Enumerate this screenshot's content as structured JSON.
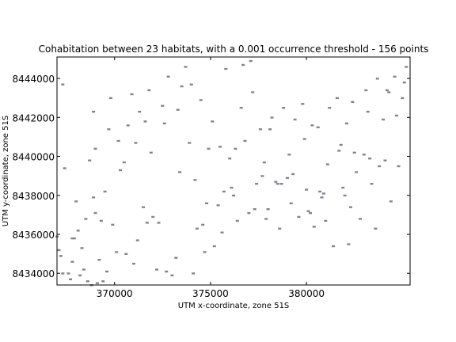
{
  "chart_data": {
    "type": "scatter",
    "title": "Cohabitation between 23 habitats, with a 0.001 occurrence threshold - 156 points",
    "xlabel": "UTM x-coordinate, zone 51S",
    "ylabel": "UTM y-coordinate, zone 51S",
    "xlim": [
      367000,
      385400
    ],
    "ylim": [
      8433400,
      8445100
    ],
    "xticks": [
      370000,
      375000,
      380000
    ],
    "yticks": [
      8434000,
      8436000,
      8438000,
      8440000,
      8442000,
      8444000
    ],
    "grid": false,
    "marker_color": "#8a7f93",
    "x": [
      367000,
      367100,
      367200,
      367300,
      367400,
      367600,
      367700,
      367800,
      367900,
      368000,
      368200,
      368300,
      368400,
      368500,
      368700,
      368800,
      368900,
      369000,
      369100,
      369200,
      369300,
      369500,
      369700,
      369800,
      369900,
      370200,
      370500,
      370700,
      370900,
      371100,
      371300,
      371500,
      371700,
      371800,
      371900,
      372200,
      372500,
      372600,
      372800,
      373200,
      373500,
      373700,
      373900,
      374200,
      374300,
      374500,
      374700,
      374900,
      375100,
      375400,
      375600,
      375800,
      376000,
      376200,
      376400,
      376600,
      376800,
      377000,
      377200,
      377400,
      377600,
      377800,
      378000,
      378200,
      378400,
      378600,
      378800,
      379000,
      379200,
      379400,
      379600,
      379800,
      380000,
      380200,
      380400,
      380600,
      380800,
      381000,
      381200,
      381400,
      381600,
      381800,
      382000,
      382200,
      382400,
      382600,
      382800,
      383000,
      383200,
      383400,
      383600,
      383800,
      384000,
      384200,
      384400,
      384600,
      384800,
      385000,
      385200,
      367300,
      368100,
      369400,
      370100,
      371000,
      372000,
      373000,
      374000,
      375200,
      376100,
      377100,
      378100,
      379100,
      380100,
      381100,
      382100,
      383100,
      384100,
      367800,
      369600,
      371600,
      373300,
      374800,
      376300,
      377900,
      379300,
      380900,
      382300,
      383700,
      385100,
      368600,
      370300,
      372300,
      374100,
      375700,
      377300,
      378700,
      380300,
      381700,
      383300,
      384700,
      369000,
      371200,
      373400,
      375500,
      377700,
      379900,
      381900,
      384300,
      368900,
      372700,
      376700,
      380700,
      370600,
      374600,
      378500,
      382500
    ],
    "y": [
      8435900,
      8435200,
      8434900,
      8443700,
      8439400,
      8434000,
      8433700,
      8434600,
      8435800,
      8437700,
      8433900,
      8435300,
      8434200,
      8436800,
      8439800,
      8433400,
      8437900,
      8440400,
      8433500,
      8434700,
      8436700,
      8438200,
      8441400,
      8443000,
      8436500,
      8440800,
      8439700,
      8441600,
      8443200,
      8440700,
      8442300,
      8437400,
      8436600,
      8443400,
      8440200,
      8434200,
      8442600,
      8441700,
      8444100,
      8434800,
      8443600,
      8444600,
      8440700,
      8438800,
      8436300,
      8442900,
      8435100,
      8440400,
      8441800,
      8437500,
      8436100,
      8444500,
      8439900,
      8438000,
      8436700,
      8442500,
      8440800,
      8437100,
      8443300,
      8438600,
      8441400,
      8439700,
      8437300,
      8442000,
      8438700,
      8436300,
      8442500,
      8438900,
      8437600,
      8441900,
      8436900,
      8442700,
      8438300,
      8437100,
      8436400,
      8441500,
      8437900,
      8436700,
      8442500,
      8435400,
      8443000,
      8440600,
      8438000,
      8435500,
      8442800,
      8439200,
      8436800,
      8440100,
      8442300,
      8438600,
      8436300,
      8439500,
      8441900,
      8443400,
      8437700,
      8444100,
      8439500,
      8443000,
      8444600,
      8434000,
      8436200,
      8433600,
      8435100,
      8434500,
      8436900,
      8433900,
      8443700,
      8435400,
      8438400,
      8444900,
      8441400,
      8440100,
      8437200,
      8439600,
      8441700,
      8443400,
      8439800,
      8435800,
      8434100,
      8441800,
      8442400,
      8437600,
      8440400,
      8436800,
      8439100,
      8438100,
      8437400,
      8444000,
      8443800,
      8433600,
      8439300,
      8436600,
      8434000,
      8438200,
      8437300,
      8438600,
      8441600,
      8440300,
      8439900,
      8442100,
      8437100,
      8435700,
      8439200,
      8440500,
      8439000,
      8440900,
      8438400,
      8443300,
      8442300,
      8434100,
      8444700,
      8438200,
      8435000,
      8436500,
      8438600,
      8440200
    ]
  }
}
